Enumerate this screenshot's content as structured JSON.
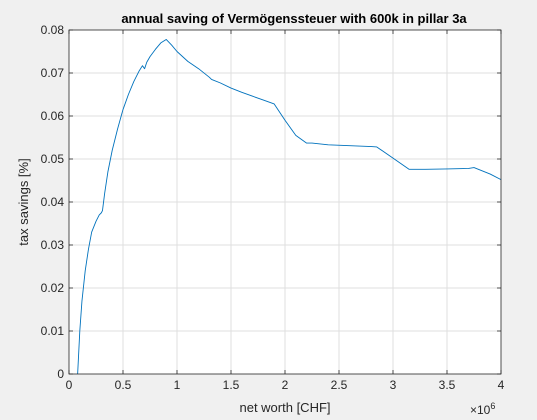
{
  "chart_data": {
    "type": "line",
    "title": "annual saving of Vermögenssteuer with 600k in pillar 3a",
    "xlabel": "net worth [CHF]",
    "ylabel": "tax savings [%]",
    "x_exponent_label": "×10",
    "x_exponent_power": "6",
    "xlim": [
      0,
      4
    ],
    "ylim": [
      0,
      0.08
    ],
    "grid": true,
    "x_ticks": [
      0,
      0.5,
      1,
      1.5,
      2,
      2.5,
      3,
      3.5,
      4
    ],
    "x_tick_labels": [
      "0",
      "0.5",
      "1",
      "1.5",
      "2",
      "2.5",
      "3",
      "3.5",
      "4"
    ],
    "y_ticks": [
      0,
      0.01,
      0.02,
      0.03,
      0.04,
      0.05,
      0.06,
      0.07,
      0.08
    ],
    "y_tick_labels": [
      "0",
      "0.01",
      "0.02",
      "0.03",
      "0.04",
      "0.05",
      "0.06",
      "0.07",
      "0.08"
    ],
    "line_color": "#0072bd",
    "background_color": "#f0f0f0",
    "axes_color": "#ffffff",
    "series": [
      {
        "x": [
          0.08,
          0.1,
          0.12,
          0.15,
          0.18,
          0.21,
          0.25,
          0.28,
          0.3,
          0.31,
          0.33,
          0.36,
          0.4,
          0.45,
          0.5,
          0.55,
          0.6,
          0.65,
          0.68,
          0.7,
          0.72,
          0.75,
          0.8,
          0.85,
          0.9,
          0.95,
          1.0,
          1.1,
          1.2,
          1.3,
          1.32,
          1.4,
          1.5,
          1.6,
          1.7,
          1.8,
          1.9,
          2.0,
          2.1,
          2.2,
          2.25,
          2.4,
          2.6,
          2.8,
          2.85,
          3.0,
          3.15,
          3.3,
          3.5,
          3.7,
          3.75,
          3.9,
          4.0
        ],
        "y": [
          0.0,
          0.01,
          0.017,
          0.024,
          0.029,
          0.033,
          0.0355,
          0.037,
          0.0375,
          0.038,
          0.042,
          0.047,
          0.052,
          0.057,
          0.0615,
          0.065,
          0.068,
          0.0705,
          0.0717,
          0.071,
          0.0725,
          0.0738,
          0.0755,
          0.077,
          0.0778,
          0.0765,
          0.075,
          0.0727,
          0.071,
          0.069,
          0.0685,
          0.0677,
          0.0665,
          0.0655,
          0.0646,
          0.0637,
          0.0628,
          0.059,
          0.0555,
          0.0537,
          0.0537,
          0.0533,
          0.0531,
          0.0529,
          0.0528,
          0.0502,
          0.0476,
          0.0476,
          0.0477,
          0.0478,
          0.048,
          0.0465,
          0.0452
        ]
      }
    ]
  }
}
